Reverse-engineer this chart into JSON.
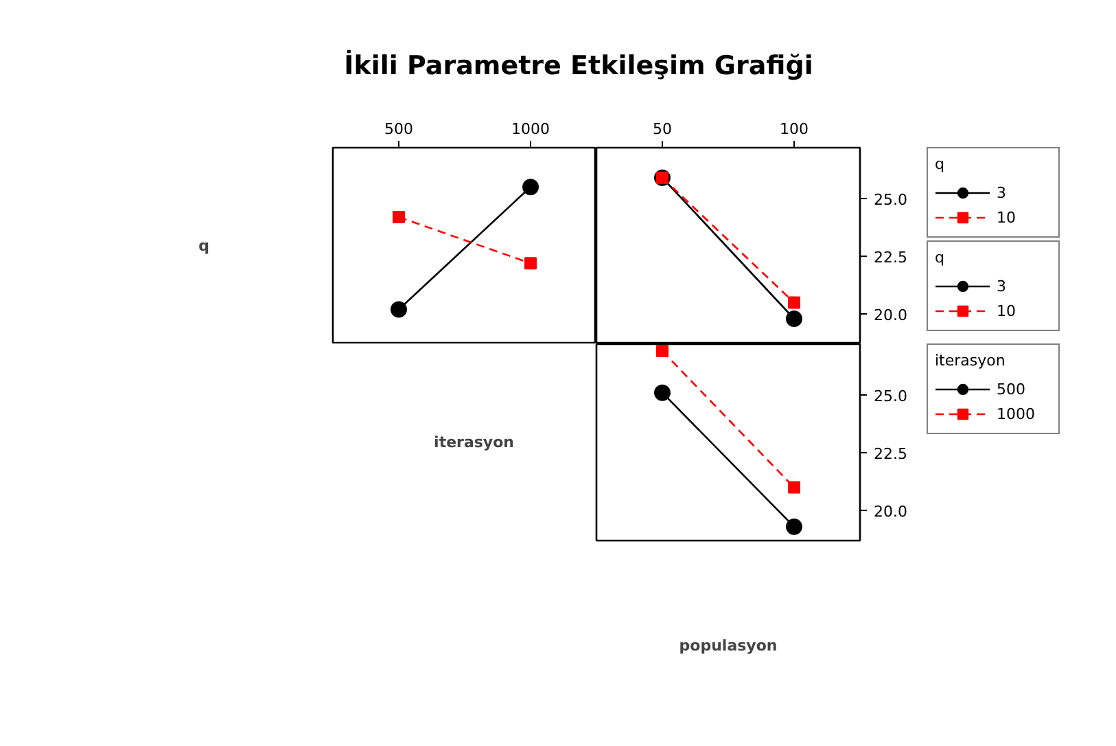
{
  "chart_data": [
    {
      "type": "line",
      "title": "İkili Parametre Etkileşim Grafiği",
      "ylabel": "q",
      "x": [
        500,
        1000
      ],
      "xlim": [
        250,
        1250
      ],
      "xticks": [
        500,
        1000
      ],
      "ylim": [
        18.7,
        27.2
      ],
      "tick_labels": "x",
      "grid": false,
      "legend": "right",
      "legend_title": "q",
      "series": [
        {
          "name": "3",
          "color": "#000000",
          "values": [
            20.2,
            25.5
          ],
          "marker": "circle",
          "line_style": "solid"
        },
        {
          "name": "10",
          "color": "#ff0000",
          "values": [
            24.2,
            22.2
          ],
          "marker": "square",
          "line_style": "dashed"
        }
      ]
    },
    {
      "type": "line",
      "x": [
        50,
        100
      ],
      "xlim": [
        25,
        125
      ],
      "xticks": [
        50,
        100
      ],
      "ylim": [
        18.7,
        27.2
      ],
      "yticks": [
        {
          "value": 20,
          "label": "20.0"
        },
        {
          "value": 22.5,
          "label": "22.5"
        },
        {
          "value": 25,
          "label": "25.0"
        }
      ],
      "grid": false,
      "legend": "right",
      "legend_title": "q",
      "series": [
        {
          "name": "3",
          "color": "#000000",
          "values": [
            25.9,
            19.8
          ],
          "marker": "circle",
          "line_style": "solid"
        },
        {
          "name": "10",
          "color": "#ff0000",
          "values": [
            25.9,
            20.5
          ],
          "marker": "square",
          "line_style": "dashed"
        }
      ]
    },
    {
      "type": "line",
      "xlabel": "populasyon",
      "ylabel": "iterasyon",
      "x": [
        50,
        100
      ],
      "xlim": [
        25,
        125
      ],
      "ylim": [
        18.7,
        27.2
      ],
      "yticks": [
        {
          "value": 20,
          "label": "20.0"
        },
        {
          "value": 22.5,
          "label": "22.5"
        },
        {
          "value": 25,
          "label": "25.0"
        }
      ],
      "tick_labels": "y",
      "grid": false,
      "legend": "right",
      "legend_title": "iterasyon",
      "series": [
        {
          "name": "500",
          "color": "#000000",
          "values": [
            25.1,
            19.3
          ],
          "marker": "circle",
          "line_style": "solid"
        },
        {
          "name": "1000",
          "color": "#ff0000",
          "values": [
            26.9,
            21.0
          ],
          "marker": "square",
          "line_style": "dashed"
        }
      ]
    }
  ]
}
